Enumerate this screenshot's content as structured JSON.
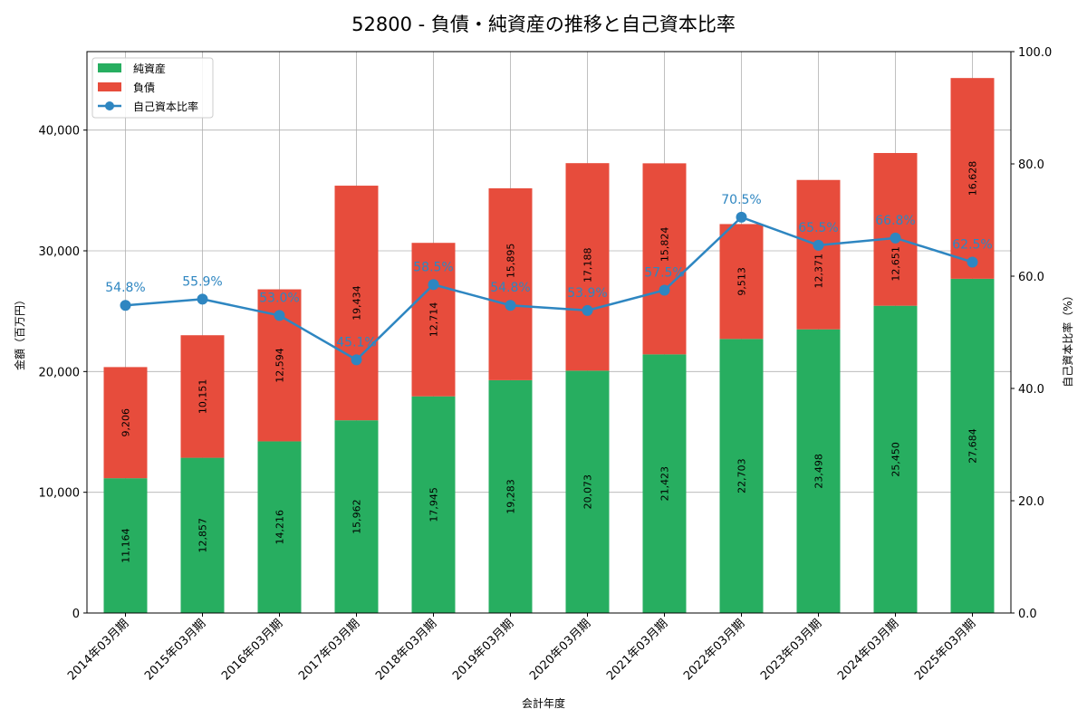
{
  "chart_data": {
    "type": "bar",
    "title": "52800 - 負債・純資産の推移と自己資本比率",
    "xlabel": "会計年度",
    "ylabel": "金額（百万円）",
    "y2label": "自己資本比率（%）",
    "ylim": [
      0,
      46500
    ],
    "y2lim": [
      0,
      100
    ],
    "yticks": [
      0,
      10000,
      20000,
      30000,
      40000
    ],
    "ytick_labels": [
      "0",
      "10,000",
      "20,000",
      "30,000",
      "40,000"
    ],
    "y2ticks": [
      0,
      20,
      40,
      60,
      80,
      100
    ],
    "y2tick_labels": [
      "0.0",
      "20.0",
      "40.0",
      "60.0",
      "80.0",
      "100.0"
    ],
    "grid": true,
    "legend_position": "top-left",
    "categories": [
      "2014年03月期",
      "2015年03月期",
      "2016年03月期",
      "2017年03月期",
      "2018年03月期",
      "2019年03月期",
      "2020年03月期",
      "2021年03月期",
      "2022年03月期",
      "2023年03月期",
      "2024年03月期",
      "2025年03月期"
    ],
    "series": [
      {
        "name": "純資産",
        "type": "bar",
        "color": "#27ae60",
        "values": [
          11164,
          12857,
          14216,
          15962,
          17945,
          19283,
          20073,
          21423,
          22703,
          23498,
          25450,
          27684
        ],
        "labels": [
          "11,164",
          "12,857",
          "14,216",
          "15,962",
          "17,945",
          "19,283",
          "20,073",
          "21,423",
          "22,703",
          "23,498",
          "25,450",
          "27,684"
        ]
      },
      {
        "name": "負債",
        "type": "bar",
        "color": "#e74c3c",
        "values": [
          9206,
          10151,
          12594,
          19434,
          12714,
          15895,
          17188,
          15824,
          9513,
          12371,
          12651,
          16628
        ],
        "labels": [
          "9,206",
          "10,151",
          "12,594",
          "19,434",
          "12,714",
          "15,895",
          "17,188",
          "15,824",
          "9,513",
          "12,371",
          "12,651",
          "16,628"
        ]
      },
      {
        "name": "自己資本比率",
        "type": "line",
        "color": "#2e86c1",
        "values": [
          54.8,
          55.9,
          53.0,
          45.1,
          58.5,
          54.8,
          53.9,
          57.5,
          70.5,
          65.5,
          66.8,
          62.5
        ],
        "labels": [
          "54.8%",
          "55.9%",
          "53.0%",
          "45.1%",
          "58.5%",
          "54.8%",
          "53.9%",
          "57.5%",
          "70.5%",
          "65.5%",
          "66.8%",
          "62.5%"
        ]
      }
    ]
  }
}
